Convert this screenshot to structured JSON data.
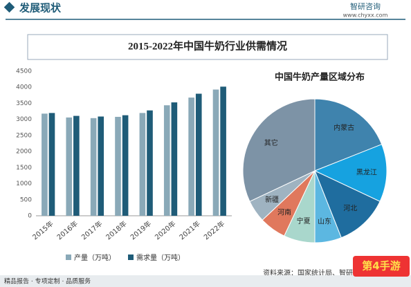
{
  "header": {
    "section": "发展现状",
    "brand": "智研咨询",
    "url": "www.chyxx.com",
    "footer": "精品报告 · 专项定制 · 品质服务",
    "source": "资料来源：国家统计局、智研咨询整理",
    "badge": "第4手游"
  },
  "chart_data": [
    {
      "type": "bar",
      "title": "2015-2022年中国牛奶行业供需情况",
      "categories": [
        "2015年",
        "2016年",
        "2017年",
        "2018年",
        "2019年",
        "2020年",
        "2021年",
        "2022年"
      ],
      "series": [
        {
          "name": "产量（万吨）",
          "color": "#8aa9b8",
          "values": [
            3180,
            3060,
            3040,
            3080,
            3200,
            3440,
            3680,
            3930
          ]
        },
        {
          "name": "需求量（万吨）",
          "color": "#1f5c78",
          "values": [
            3200,
            3110,
            3090,
            3130,
            3280,
            3530,
            3800,
            4020
          ]
        }
      ],
      "ylim": [
        0,
        4500
      ],
      "yticks": [
        0,
        500,
        1000,
        1500,
        2000,
        2500,
        3000,
        3500,
        4000,
        4500
      ],
      "grid": false
    },
    {
      "type": "pie",
      "title": "中国牛奶产量区域分布",
      "categories": [
        "内蒙古",
        "黑龙江",
        "河北",
        "山东",
        "宁夏",
        "河南",
        "新疆",
        "其它"
      ],
      "values": [
        19,
        13,
        12,
        6,
        7,
        6,
        5,
        32
      ],
      "colors": [
        "#3f83ad",
        "#16a2e0",
        "#1f6d9f",
        "#5cb7e1",
        "#a9d7cc",
        "#e0785d",
        "#9fb3c1",
        "#7d93a6"
      ]
    }
  ]
}
